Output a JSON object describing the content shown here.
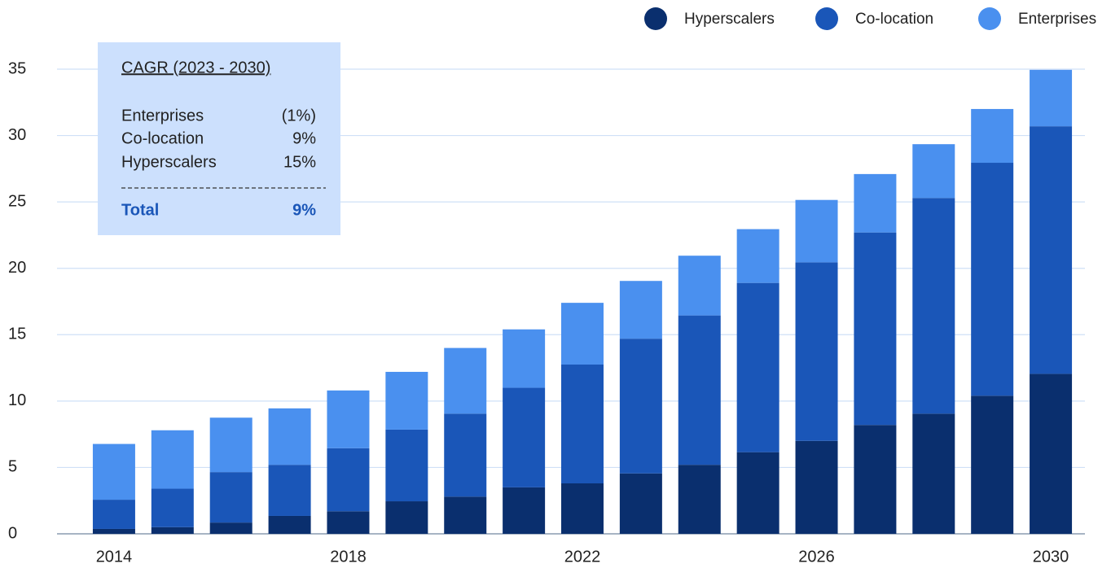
{
  "chart_data": {
    "type": "stacked-bar",
    "categories": [
      "2014",
      null,
      null,
      null,
      "2018",
      null,
      null,
      null,
      "2022",
      null,
      null,
      null,
      "2026",
      null,
      null,
      null,
      "2030"
    ],
    "series": [
      {
        "name": "Hyperscalers",
        "color": "#0a2f6e",
        "values": [
          0.37,
          0.5,
          0.85,
          1.35,
          1.7,
          2.45,
          2.8,
          3.5,
          3.8,
          4.55,
          5.2,
          6.15,
          7,
          8.2,
          9.05,
          10.4,
          12.05
        ]
      },
      {
        "name": "Co-location",
        "color": "#1a56b8",
        "values": [
          2.2,
          2.9,
          3.8,
          3.85,
          4.75,
          5.4,
          6.25,
          7.5,
          8.95,
          10.15,
          11.25,
          12.75,
          13.45,
          14.5,
          16.25,
          17.55,
          18.65
        ]
      },
      {
        "name": "Enterprises",
        "color": "#4a90ef",
        "values": [
          4.2,
          4.4,
          4.1,
          4.25,
          4.35,
          4.35,
          4.95,
          4.4,
          4.65,
          4.35,
          4.5,
          4.05,
          4.7,
          4.4,
          4.05,
          4.05,
          4.25
        ]
      }
    ],
    "ylim": [
      0,
      35
    ],
    "yticks": [
      0,
      5,
      10,
      15,
      20,
      25,
      30,
      35
    ],
    "grid": true,
    "legend": "top-right",
    "annotation": {
      "title": "CAGR (2023 - 2030)",
      "rows": [
        [
          "Enterprises",
          "(1%)"
        ],
        [
          "Co-location",
          "9%"
        ],
        [
          "Hyperscalers",
          "15%"
        ]
      ],
      "total": [
        "Total",
        "9%"
      ]
    }
  }
}
